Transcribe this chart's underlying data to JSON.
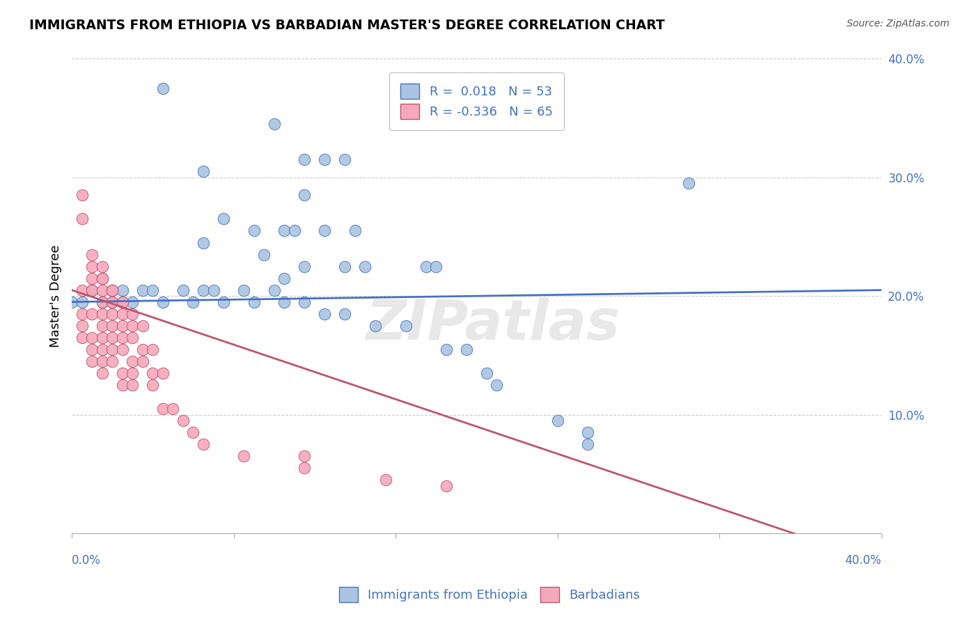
{
  "title": "IMMIGRANTS FROM ETHIOPIA VS BARBADIAN MASTER'S DEGREE CORRELATION CHART",
  "source": "Source: ZipAtlas.com",
  "ylabel": "Master's Degree",
  "xlim": [
    0.0,
    0.4
  ],
  "ylim": [
    0.0,
    0.4
  ],
  "yticks": [
    0.0,
    0.1,
    0.2,
    0.3,
    0.4
  ],
  "ytick_labels": [
    "",
    "10.0%",
    "20.0%",
    "30.0%",
    "40.0%"
  ],
  "xticks": [
    0.0,
    0.08,
    0.16,
    0.24,
    0.32,
    0.4
  ],
  "blue_R": 0.018,
  "blue_N": 53,
  "pink_R": -0.336,
  "pink_N": 65,
  "blue_color": "#aac4e2",
  "pink_color": "#f5a8bb",
  "blue_line_color": "#4472C4",
  "pink_line_color": "#C0546A",
  "watermark": "ZIPatlas",
  "blue_line": [
    0.195,
    0.205
  ],
  "pink_line": [
    0.205,
    -0.025
  ],
  "blue_scatter": [
    [
      0.045,
      0.375
    ],
    [
      0.1,
      0.345
    ],
    [
      0.115,
      0.315
    ],
    [
      0.125,
      0.315
    ],
    [
      0.135,
      0.315
    ],
    [
      0.065,
      0.305
    ],
    [
      0.115,
      0.285
    ],
    [
      0.075,
      0.265
    ],
    [
      0.09,
      0.255
    ],
    [
      0.105,
      0.255
    ],
    [
      0.11,
      0.255
    ],
    [
      0.125,
      0.255
    ],
    [
      0.14,
      0.255
    ],
    [
      0.065,
      0.245
    ],
    [
      0.095,
      0.235
    ],
    [
      0.115,
      0.225
    ],
    [
      0.135,
      0.225
    ],
    [
      0.145,
      0.225
    ],
    [
      0.175,
      0.225
    ],
    [
      0.18,
      0.225
    ],
    [
      0.105,
      0.215
    ],
    [
      0.01,
      0.205
    ],
    [
      0.02,
      0.205
    ],
    [
      0.025,
      0.205
    ],
    [
      0.035,
      0.205
    ],
    [
      0.04,
      0.205
    ],
    [
      0.055,
      0.205
    ],
    [
      0.065,
      0.205
    ],
    [
      0.07,
      0.205
    ],
    [
      0.085,
      0.205
    ],
    [
      0.1,
      0.205
    ],
    [
      0.0,
      0.195
    ],
    [
      0.005,
      0.195
    ],
    [
      0.015,
      0.195
    ],
    [
      0.03,
      0.195
    ],
    [
      0.045,
      0.195
    ],
    [
      0.06,
      0.195
    ],
    [
      0.075,
      0.195
    ],
    [
      0.09,
      0.195
    ],
    [
      0.105,
      0.195
    ],
    [
      0.115,
      0.195
    ],
    [
      0.125,
      0.185
    ],
    [
      0.135,
      0.185
    ],
    [
      0.15,
      0.175
    ],
    [
      0.165,
      0.175
    ],
    [
      0.185,
      0.155
    ],
    [
      0.195,
      0.155
    ],
    [
      0.205,
      0.135
    ],
    [
      0.21,
      0.125
    ],
    [
      0.24,
      0.095
    ],
    [
      0.255,
      0.085
    ],
    [
      0.255,
      0.075
    ],
    [
      0.305,
      0.295
    ]
  ],
  "pink_scatter": [
    [
      0.005,
      0.285
    ],
    [
      0.005,
      0.265
    ],
    [
      0.01,
      0.235
    ],
    [
      0.01,
      0.225
    ],
    [
      0.015,
      0.225
    ],
    [
      0.01,
      0.215
    ],
    [
      0.015,
      0.215
    ],
    [
      0.015,
      0.215
    ],
    [
      0.005,
      0.205
    ],
    [
      0.01,
      0.205
    ],
    [
      0.015,
      0.205
    ],
    [
      0.02,
      0.205
    ],
    [
      0.02,
      0.205
    ],
    [
      0.015,
      0.195
    ],
    [
      0.02,
      0.195
    ],
    [
      0.02,
      0.195
    ],
    [
      0.025,
      0.195
    ],
    [
      0.025,
      0.195
    ],
    [
      0.005,
      0.185
    ],
    [
      0.01,
      0.185
    ],
    [
      0.015,
      0.185
    ],
    [
      0.02,
      0.185
    ],
    [
      0.025,
      0.185
    ],
    [
      0.03,
      0.185
    ],
    [
      0.005,
      0.175
    ],
    [
      0.015,
      0.175
    ],
    [
      0.02,
      0.175
    ],
    [
      0.025,
      0.175
    ],
    [
      0.03,
      0.175
    ],
    [
      0.035,
      0.175
    ],
    [
      0.005,
      0.165
    ],
    [
      0.01,
      0.165
    ],
    [
      0.015,
      0.165
    ],
    [
      0.02,
      0.165
    ],
    [
      0.025,
      0.165
    ],
    [
      0.03,
      0.165
    ],
    [
      0.01,
      0.155
    ],
    [
      0.015,
      0.155
    ],
    [
      0.02,
      0.155
    ],
    [
      0.025,
      0.155
    ],
    [
      0.035,
      0.155
    ],
    [
      0.04,
      0.155
    ],
    [
      0.01,
      0.145
    ],
    [
      0.015,
      0.145
    ],
    [
      0.02,
      0.145
    ],
    [
      0.03,
      0.145
    ],
    [
      0.035,
      0.145
    ],
    [
      0.015,
      0.135
    ],
    [
      0.025,
      0.135
    ],
    [
      0.03,
      0.135
    ],
    [
      0.04,
      0.135
    ],
    [
      0.045,
      0.135
    ],
    [
      0.025,
      0.125
    ],
    [
      0.03,
      0.125
    ],
    [
      0.04,
      0.125
    ],
    [
      0.045,
      0.105
    ],
    [
      0.05,
      0.105
    ],
    [
      0.055,
      0.095
    ],
    [
      0.06,
      0.085
    ],
    [
      0.065,
      0.075
    ],
    [
      0.085,
      0.065
    ],
    [
      0.115,
      0.065
    ],
    [
      0.115,
      0.055
    ],
    [
      0.155,
      0.045
    ],
    [
      0.185,
      0.04
    ]
  ]
}
